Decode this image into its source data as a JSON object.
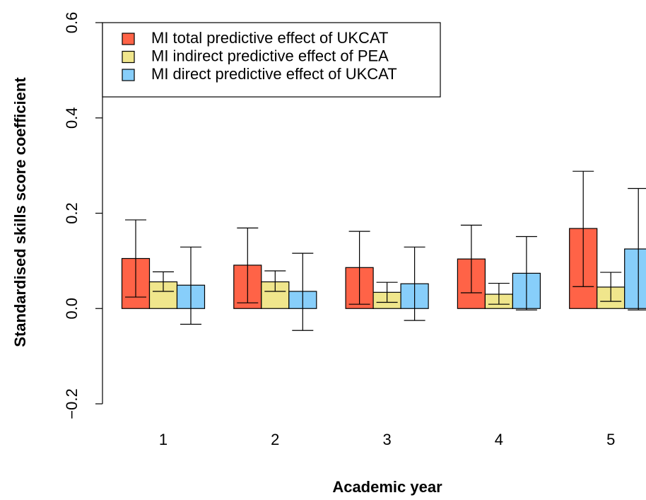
{
  "chart_data": {
    "type": "bar",
    "x_label": "Academic year",
    "y_label": "Standardised skills score coefficient",
    "categories": [
      "1",
      "2",
      "3",
      "4",
      "5"
    ],
    "series": [
      {
        "name": "MI total predictive effect of UKCAT",
        "color": "#ff6347",
        "values": [
          0.105,
          0.091,
          0.086,
          0.104,
          0.168
        ],
        "ci_low": [
          0.024,
          0.012,
          0.009,
          0.033,
          0.046
        ],
        "ci_high": [
          0.186,
          0.169,
          0.162,
          0.175,
          0.288
        ]
      },
      {
        "name": "MI indirect predictive effect of PEA",
        "color": "#f0e68c",
        "values": [
          0.056,
          0.056,
          0.034,
          0.03,
          0.045
        ],
        "ci_low": [
          0.036,
          0.036,
          0.013,
          0.009,
          0.015
        ],
        "ci_high": [
          0.077,
          0.079,
          0.055,
          0.053,
          0.076
        ]
      },
      {
        "name": "MI direct predictive effect of UKCAT",
        "color": "#87cefa",
        "values": [
          0.049,
          0.036,
          0.052,
          0.074,
          0.125
        ],
        "ci_low": [
          -0.033,
          -0.046,
          -0.025,
          -0.003,
          -0.003
        ],
        "ci_high": [
          0.129,
          0.116,
          0.129,
          0.151,
          0.252
        ]
      }
    ],
    "ylim": [
      -0.2,
      0.6
    ],
    "yticks": [
      {
        "value": -0.2,
        "label": "−0.2"
      },
      {
        "value": 0,
        "label": "0.0"
      },
      0.2,
      0.4,
      0.6
    ],
    "legend": "top-left"
  }
}
